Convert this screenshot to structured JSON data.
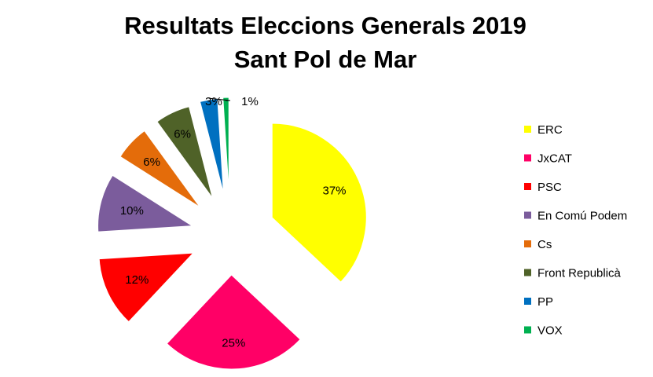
{
  "chart_data": {
    "type": "pie",
    "title": [
      "Resultats Eleccions Generals 2019",
      "Sant Pol de Mar"
    ],
    "legend_position": "right",
    "slices": [
      {
        "name": "ERC",
        "value": 37,
        "label": "37%",
        "color": "#FFFF00"
      },
      {
        "name": "JxCAT",
        "value": 25,
        "label": "25%",
        "color": "#FF0066"
      },
      {
        "name": "PSC",
        "value": 12,
        "label": "12%",
        "color": "#FF0000"
      },
      {
        "name": "En Comú Podem",
        "value": 10,
        "label": "10%",
        "color": "#7B5C9C"
      },
      {
        "name": "Cs",
        "value": 6,
        "label": "6%",
        "color": "#E46C0A"
      },
      {
        "name": "Front Republicà",
        "value": 6,
        "label": "6%",
        "color": "#4F6228"
      },
      {
        "name": "PP",
        "value": 3,
        "label": "3%",
        "color": "#0070C0"
      },
      {
        "name": "VOX",
        "value": 1,
        "label": "1%",
        "color": "#00B050"
      }
    ]
  }
}
